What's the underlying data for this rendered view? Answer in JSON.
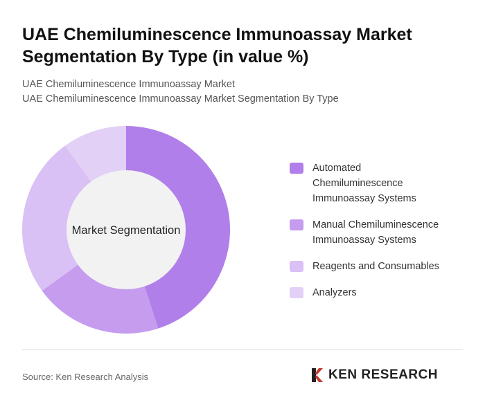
{
  "title": "UAE Chemiluminescence Immunoassay Market Segmentation By Type (in value %)",
  "subtitle1": "UAE Chemiluminescence Immunoassay Market",
  "subtitle2": "UAE Chemiluminescence Immunoassay Market Segmentation By Type",
  "chart_data": {
    "type": "pie",
    "donut": true,
    "center_label": "Market Segmentation",
    "legend_position": "right",
    "categories": [
      "Automated Chemiluminescence Immunoassay Systems",
      "Manual Chemiluminescence Immunoassay Systems",
      "Reagents and Consumables",
      "Analyzers"
    ],
    "values": [
      45,
      20,
      25,
      10
    ],
    "colors": [
      "#b07fe9",
      "#c59cee",
      "#d9c0f5",
      "#e3d0f6"
    ]
  },
  "source": "Source: Ken Research Analysis",
  "logo_text": "KEN RESEARCH"
}
